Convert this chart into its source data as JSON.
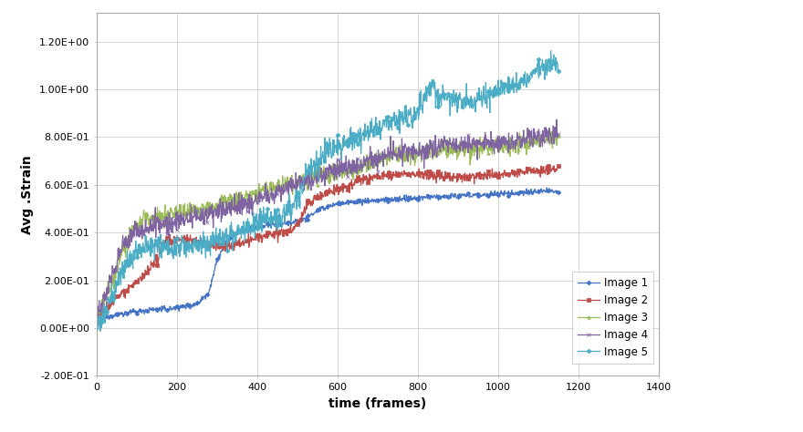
{
  "title": "",
  "xlabel": "time (frames)",
  "ylabel": "Avg .Strain",
  "xlim": [
    0,
    1400
  ],
  "ylim": [
    -0.2,
    1.32
  ],
  "xticks": [
    0,
    200,
    400,
    600,
    800,
    1000,
    1200,
    1400
  ],
  "yticks": [
    -0.2,
    0.0,
    0.2,
    0.4,
    0.6,
    0.8,
    1.0,
    1.2
  ],
  "ytick_labels": [
    "-2.00E-01",
    "0.00E+00",
    "2.00E-01",
    "4.00E-01",
    "6.00E-01",
    "8.00E-01",
    "1.00E+00",
    "1.20E+00"
  ],
  "series": [
    {
      "label": "Image 1",
      "color": "#4472C4",
      "marker": "D"
    },
    {
      "label": "Image 2",
      "color": "#BE4B48",
      "marker": "s"
    },
    {
      "label": "Image 3",
      "color": "#9BBB59",
      "marker": "^"
    },
    {
      "label": "Image 4",
      "color": "#8064A2",
      "marker": "x"
    },
    {
      "label": "Image 5",
      "color": "#4BACC6",
      "marker": "D"
    }
  ],
  "background_color": "#FFFFFF",
  "grid_color": "#D0D0D0"
}
